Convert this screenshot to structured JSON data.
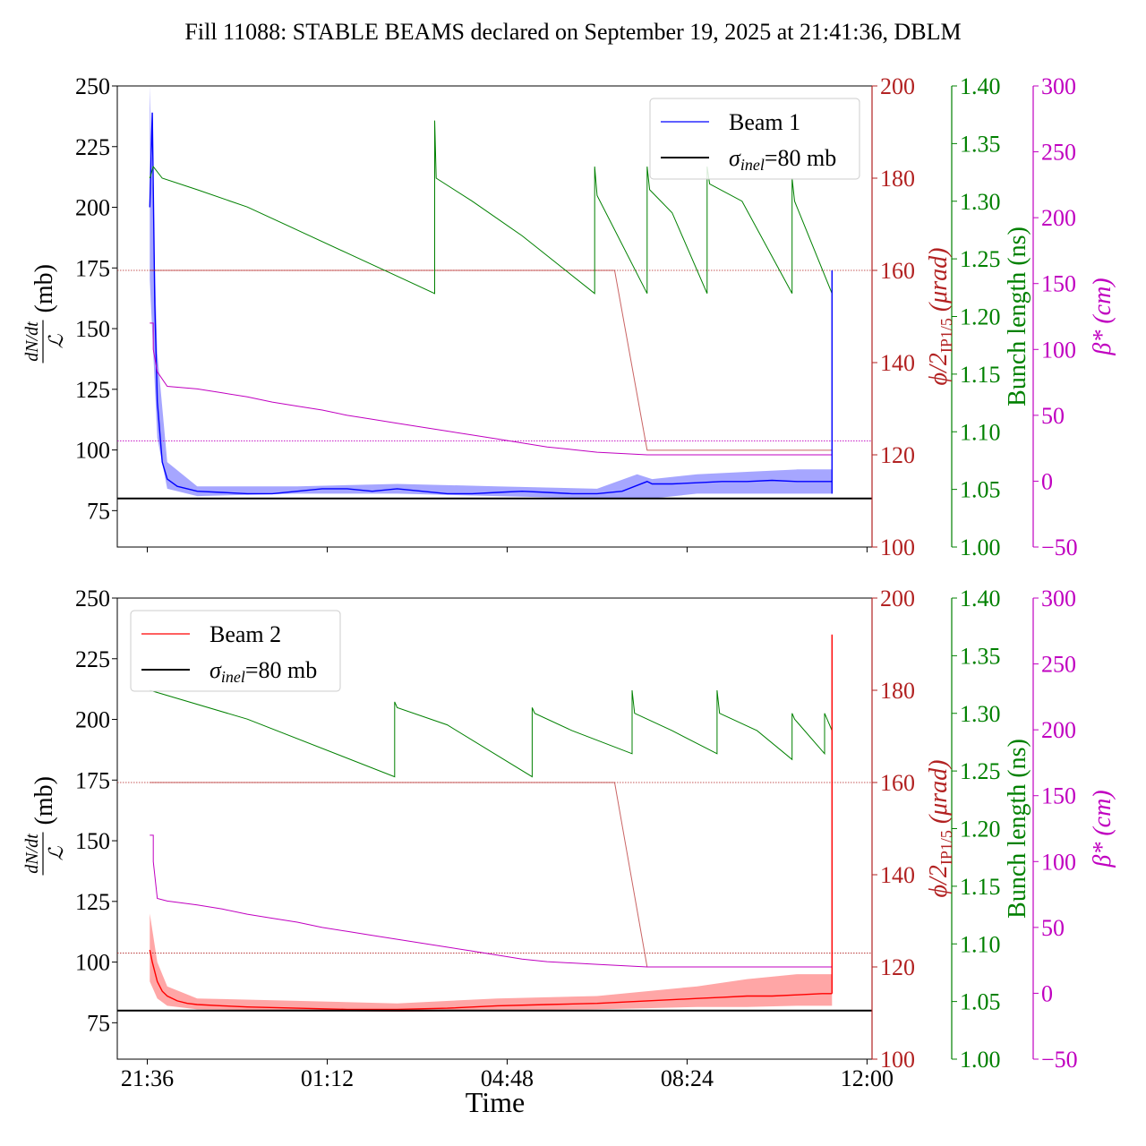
{
  "title": "Fill 11088: STABLE BEAMS declared on September 19, 2025 at 21:41:36, DBLM",
  "xlabel": "Time",
  "x_tick_labels": [
    "21:36",
    "01:12",
    "04:48",
    "08:24",
    "12:00"
  ],
  "colors": {
    "beam1": "#0000ff",
    "beam2": "#ff0000",
    "crossing": "#b22222",
    "bunch": "#008000",
    "beta": "#c000c0",
    "reference": "#000000"
  },
  "chart_data": [
    {
      "type": "line",
      "panel": "top",
      "x_unit": "hours after 21:36",
      "xlim": [
        -0.6,
        14.5
      ],
      "x_ticks": [
        0,
        3.6,
        7.2,
        10.8,
        14.4
      ],
      "x_tick_labels": [
        "",
        "",
        "",
        "",
        ""
      ],
      "axes": {
        "left": {
          "label_num": "dN/dt",
          "label_den": "ℒ",
          "label_unit": "(mb)",
          "ylim": [
            60,
            250
          ],
          "ticks": [
            75,
            100,
            125,
            150,
            175,
            200,
            225,
            250
          ]
        },
        "crossing": {
          "label": "ϕ/2",
          "label_sub": "IP1/5",
          "label_unit": "(μrad)",
          "ylim": [
            100,
            200
          ],
          "ticks": [
            100,
            120,
            140,
            160,
            180,
            200
          ]
        },
        "bunch": {
          "label": "Bunch length (ns)",
          "ylim": [
            1.0,
            1.4
          ],
          "ticks": [
            "1.00",
            "1.05",
            "1.10",
            "1.15",
            "1.20",
            "1.25",
            "1.30",
            "1.35",
            "1.40"
          ]
        },
        "beta": {
          "label": "β* (cm)",
          "ylim": [
            -50,
            300
          ],
          "ticks": [
            "−50",
            "0",
            "50",
            "100",
            "150",
            "200",
            "250",
            "300"
          ]
        }
      },
      "legend": {
        "position": "top-right",
        "entries": [
          "Beam 1",
          "σinel=80 mb"
        ]
      },
      "series": [
        {
          "name": "Beam 1",
          "axis": "left",
          "x": [
            0.05,
            0.1,
            0.15,
            0.2,
            0.3,
            0.4,
            0.6,
            0.8,
            1.0,
            1.5,
            2.0,
            2.5,
            3.0,
            3.5,
            4.0,
            4.5,
            5.0,
            5.5,
            6.0,
            6.5,
            7.0,
            7.5,
            8.0,
            8.5,
            9.0,
            9.5,
            10.0,
            10.1,
            10.5,
            11.0,
            11.5,
            12.0,
            12.5,
            13.0,
            13.5,
            13.7
          ],
          "y": [
            200,
            239,
            160,
            120,
            95,
            88,
            85,
            84,
            83,
            82.5,
            82,
            82,
            83,
            84,
            84,
            83,
            84,
            83,
            82,
            82,
            82.5,
            83,
            82.5,
            82,
            82,
            83,
            87,
            86,
            86,
            86.5,
            87,
            87,
            87.5,
            87,
            87,
            87
          ]
        },
        {
          "name": "Beam 1 band upper",
          "axis": "left",
          "x": [
            0.05,
            0.2,
            0.4,
            1.0,
            3.0,
            5.0,
            7.0,
            9.0,
            9.8,
            10.1,
            11.0,
            12.0,
            13.0,
            13.7
          ],
          "y": [
            250,
            140,
            95,
            85,
            85,
            86,
            85,
            84,
            90,
            88,
            90,
            91,
            92,
            92
          ]
        },
        {
          "name": "Beam 1 band lower",
          "axis": "left",
          "x": [
            0.05,
            0.2,
            0.4,
            1.0,
            3.0,
            5.0,
            7.0,
            9.0,
            9.8,
            10.1,
            11.0,
            12.0,
            13.0,
            13.7
          ],
          "y": [
            170,
            105,
            84,
            81,
            82,
            82,
            81,
            80,
            80,
            80,
            82,
            82,
            82,
            82
          ]
        },
        {
          "name": "ϕ/2 IP1/5",
          "axis": "crossing",
          "x": [
            0.05,
            9.35,
            9.35,
            10.0,
            10.0,
            11.0,
            12.0,
            13.7
          ],
          "y": [
            160,
            160,
            160,
            121,
            121,
            121,
            121,
            121
          ]
        },
        {
          "name": "Bunch length",
          "axis": "bunch",
          "x": [
            0.05,
            0.12,
            0.3,
            1.0,
            2.0,
            3.0,
            4.0,
            5.0,
            5.75,
            5.75,
            5.78,
            6.5,
            7.5,
            8.95,
            8.95,
            9.0,
            10.0,
            10.0,
            10.05,
            10.5,
            11.2,
            11.2,
            11.25,
            11.9,
            12.9,
            12.9,
            12.95,
            13.7
          ],
          "y": [
            1.32,
            1.33,
            1.32,
            1.31,
            1.295,
            1.275,
            1.255,
            1.235,
            1.22,
            1.37,
            1.32,
            1.3,
            1.27,
            1.22,
            1.33,
            1.305,
            1.22,
            1.33,
            1.31,
            1.29,
            1.22,
            1.33,
            1.315,
            1.3,
            1.22,
            1.32,
            1.3,
            1.22
          ]
        },
        {
          "name": "β*",
          "axis": "beta",
          "x": [
            0.05,
            0.12,
            0.12,
            0.2,
            0.4,
            1.0,
            1.5,
            2.0,
            2.5,
            3.0,
            3.5,
            4.0,
            4.5,
            5.0,
            5.5,
            6.0,
            6.5,
            7.0,
            7.5,
            8.0,
            8.5,
            9.0,
            10.0,
            11.0,
            12.0,
            13.7
          ],
          "y": [
            120,
            120,
            100,
            83,
            72,
            70,
            67,
            64,
            60,
            57,
            54,
            50,
            47,
            44,
            41,
            38,
            35,
            32,
            29,
            26,
            24,
            22,
            20,
            20,
            20,
            20
          ]
        },
        {
          "name": "σinel=80 mb",
          "axis": "left",
          "x": [
            -0.6,
            14.5
          ],
          "y": [
            80,
            80
          ]
        },
        {
          "name": "Beam 1 end spike",
          "axis": "left",
          "x": [
            13.7,
            13.7,
            13.7
          ],
          "y": [
            82,
            174,
            82
          ]
        }
      ],
      "reference_lines": [
        {
          "axis": "crossing",
          "y": 160
        },
        {
          "axis": "crossing",
          "y": 123
        }
      ]
    },
    {
      "type": "line",
      "panel": "bottom",
      "x_unit": "hours after 21:36",
      "xlim": [
        -0.6,
        14.5
      ],
      "x_ticks": [
        0,
        3.6,
        7.2,
        10.8,
        14.4
      ],
      "x_tick_labels": [
        "21:36",
        "01:12",
        "04:48",
        "08:24",
        "12:00"
      ],
      "xlabel": "Time",
      "axes": {
        "left": {
          "label_num": "dN/dt",
          "label_den": "ℒ",
          "label_unit": "(mb)",
          "ylim": [
            60,
            250
          ],
          "ticks": [
            75,
            100,
            125,
            150,
            175,
            200,
            225,
            250
          ]
        },
        "crossing": {
          "label": "ϕ/2",
          "label_sub": "IP1/5",
          "label_unit": "(μrad)",
          "ylim": [
            100,
            200
          ],
          "ticks": [
            100,
            120,
            140,
            160,
            180,
            200
          ]
        },
        "bunch": {
          "label": "Bunch length (ns)",
          "ylim": [
            1.0,
            1.4
          ],
          "ticks": [
            "1.00",
            "1.05",
            "1.10",
            "1.15",
            "1.20",
            "1.25",
            "1.30",
            "1.35",
            "1.40"
          ]
        },
        "beta": {
          "label": "β* (cm)",
          "ylim": [
            -50,
            300
          ],
          "ticks": [
            "−50",
            "0",
            "50",
            "100",
            "150",
            "200",
            "250",
            "300"
          ]
        }
      },
      "legend": {
        "position": "top-left",
        "entries": [
          "Beam 2",
          "σinel=80 mb"
        ]
      },
      "series": [
        {
          "name": "Beam 2",
          "axis": "left",
          "x": [
            0.05,
            0.1,
            0.2,
            0.3,
            0.4,
            0.6,
            0.8,
            1.0,
            1.5,
            2.0,
            3.0,
            4.0,
            5.0,
            6.0,
            7.0,
            8.0,
            9.0,
            10.0,
            10.5,
            11.0,
            11.5,
            12.0,
            12.5,
            13.0,
            13.5,
            13.7
          ],
          "y": [
            105,
            100,
            92,
            88,
            86,
            84,
            83,
            82.5,
            82,
            81.5,
            81,
            80.5,
            80.5,
            81,
            82,
            82.5,
            83,
            84,
            84.5,
            85,
            85.5,
            86,
            86,
            86.5,
            87,
            87
          ]
        },
        {
          "name": "Beam 2 band upper",
          "axis": "left",
          "x": [
            0.05,
            0.2,
            0.4,
            1.0,
            3.0,
            5.0,
            7.0,
            9.0,
            10.0,
            11.0,
            12.0,
            13.0,
            13.7
          ],
          "y": [
            120,
            100,
            90,
            85,
            84,
            83,
            85,
            86,
            88,
            90,
            93,
            95,
            95
          ]
        },
        {
          "name": "Beam 2 band lower",
          "axis": "left",
          "x": [
            0.05,
            0.2,
            0.4,
            1.0,
            3.0,
            5.0,
            7.0,
            9.0,
            10.0,
            11.0,
            12.0,
            13.0,
            13.7
          ],
          "y": [
            92,
            85,
            82,
            80.5,
            80,
            79.5,
            80,
            80.5,
            81,
            81.5,
            81.5,
            82,
            82
          ]
        },
        {
          "name": "ϕ/2 IP1/5",
          "axis": "crossing",
          "x": [
            0.05,
            9.35,
            9.35,
            10.0,
            10.0,
            13.7
          ],
          "y": [
            160,
            160,
            160,
            120,
            120,
            120
          ]
        },
        {
          "name": "Bunch length",
          "axis": "bunch",
          "x": [
            0.05,
            2.0,
            4.95,
            4.95,
            5.0,
            6.0,
            7.7,
            7.7,
            7.75,
            8.5,
            9.7,
            9.7,
            9.75,
            10.5,
            11.4,
            11.4,
            11.45,
            12.2,
            12.9,
            12.9,
            12.95,
            13.55,
            13.55,
            13.6,
            13.7
          ],
          "y": [
            1.32,
            1.295,
            1.245,
            1.31,
            1.305,
            1.29,
            1.245,
            1.305,
            1.3,
            1.285,
            1.265,
            1.32,
            1.3,
            1.285,
            1.265,
            1.32,
            1.3,
            1.285,
            1.26,
            1.3,
            1.295,
            1.265,
            1.3,
            1.295,
            1.285
          ]
        },
        {
          "name": "β*",
          "axis": "beta",
          "x": [
            0.05,
            0.12,
            0.12,
            0.2,
            0.4,
            1.0,
            1.5,
            2.0,
            2.5,
            3.0,
            3.5,
            4.0,
            4.5,
            5.0,
            5.5,
            6.0,
            6.5,
            7.0,
            7.5,
            8.0,
            9.0,
            10.0,
            11.0,
            12.0,
            13.7
          ],
          "y": [
            120,
            120,
            100,
            72,
            70,
            67,
            64,
            60,
            57,
            54,
            50,
            47,
            44,
            41,
            38,
            35,
            32,
            29,
            26,
            24,
            22,
            20,
            20,
            20,
            20
          ]
        },
        {
          "name": "σinel=80 mb",
          "axis": "left",
          "x": [
            -0.6,
            14.5
          ],
          "y": [
            80,
            80
          ]
        },
        {
          "name": "Beam 2 end spike",
          "axis": "left",
          "x": [
            13.7,
            13.7,
            13.7
          ],
          "y": [
            87,
            235,
            87
          ]
        }
      ],
      "reference_lines": [
        {
          "axis": "crossing",
          "y": 160
        },
        {
          "axis": "crossing",
          "y": 123
        }
      ]
    }
  ]
}
